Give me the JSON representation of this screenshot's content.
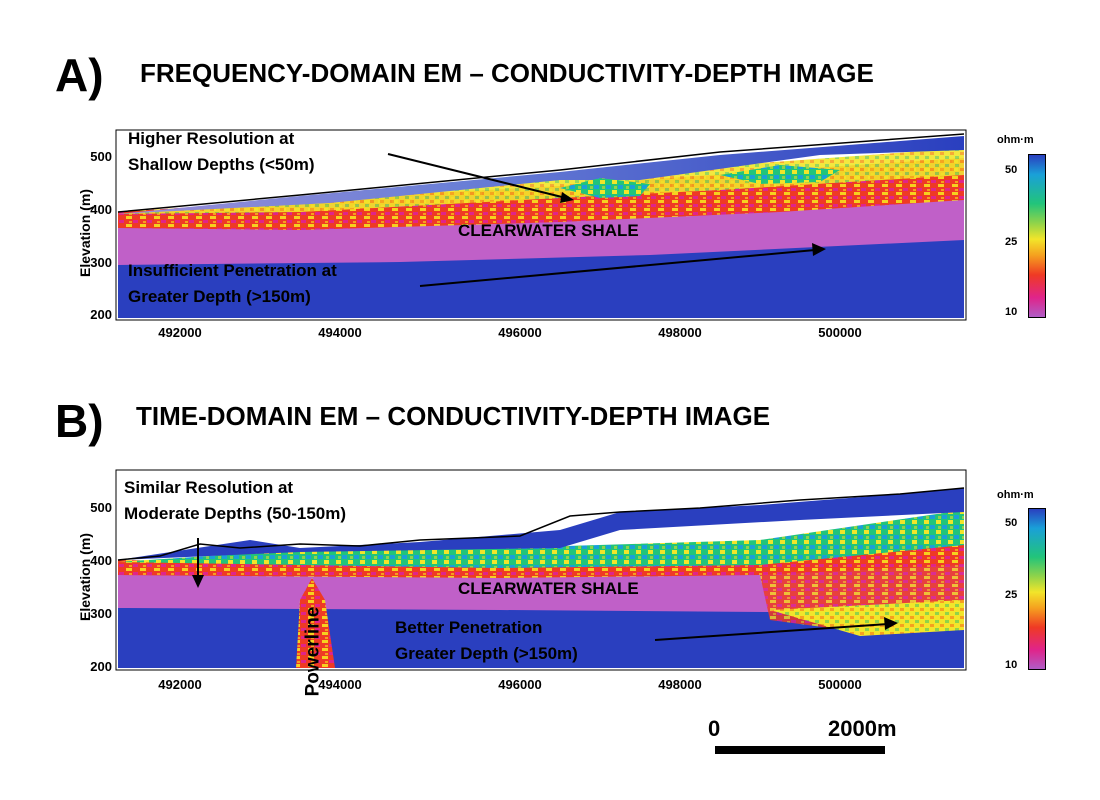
{
  "panel_a": {
    "letter": "A)",
    "title": "FREQUENCY-DOMAIN EM – CONDUCTIVITY-DEPTH IMAGE",
    "annotation_top_line1": "Higher Resolution at",
    "annotation_top_line2": "Shallow Depths (<50m)",
    "annotation_bottom_line1": "Insufficient Penetration at",
    "annotation_bottom_line2": "Greater Depth (>150m)",
    "shale_label": "CLEARWATER SHALE",
    "y_axis_label": "Elevation (m)",
    "y_ticks": [
      "500",
      "400",
      "300",
      "200"
    ],
    "x_ticks": [
      "492000",
      "494000",
      "496000",
      "498000",
      "500000"
    ]
  },
  "panel_b": {
    "letter": "B)",
    "title": "TIME-DOMAIN EM – CONDUCTIVITY-DEPTH IMAGE",
    "annotation_top_line1": "Similar Resolution at",
    "annotation_top_line2": "Moderate Depths (50-150m)",
    "annotation_bottom_line1": "Better Penetration",
    "annotation_bottom_line2": "Greater Depth (>150m)",
    "shale_label": "CLEARWATER SHALE",
    "powerline_label": "Powerline",
    "y_axis_label": "Elevation (m)",
    "y_ticks": [
      "500",
      "400",
      "300",
      "200"
    ],
    "x_ticks": [
      "492000",
      "494000",
      "496000",
      "498000",
      "500000"
    ]
  },
  "colorbar": {
    "unit": "ohm·m",
    "ticks": [
      "50",
      "25",
      "10"
    ],
    "colors": [
      "#2a3fbf",
      "#1aa0d8",
      "#22c47a",
      "#8fd34a",
      "#f2e52a",
      "#f5a01f",
      "#ef3a24",
      "#e0248a",
      "#b05cc6"
    ]
  },
  "scale_bar": {
    "start_label": "0",
    "end_label": "2000m"
  }
}
